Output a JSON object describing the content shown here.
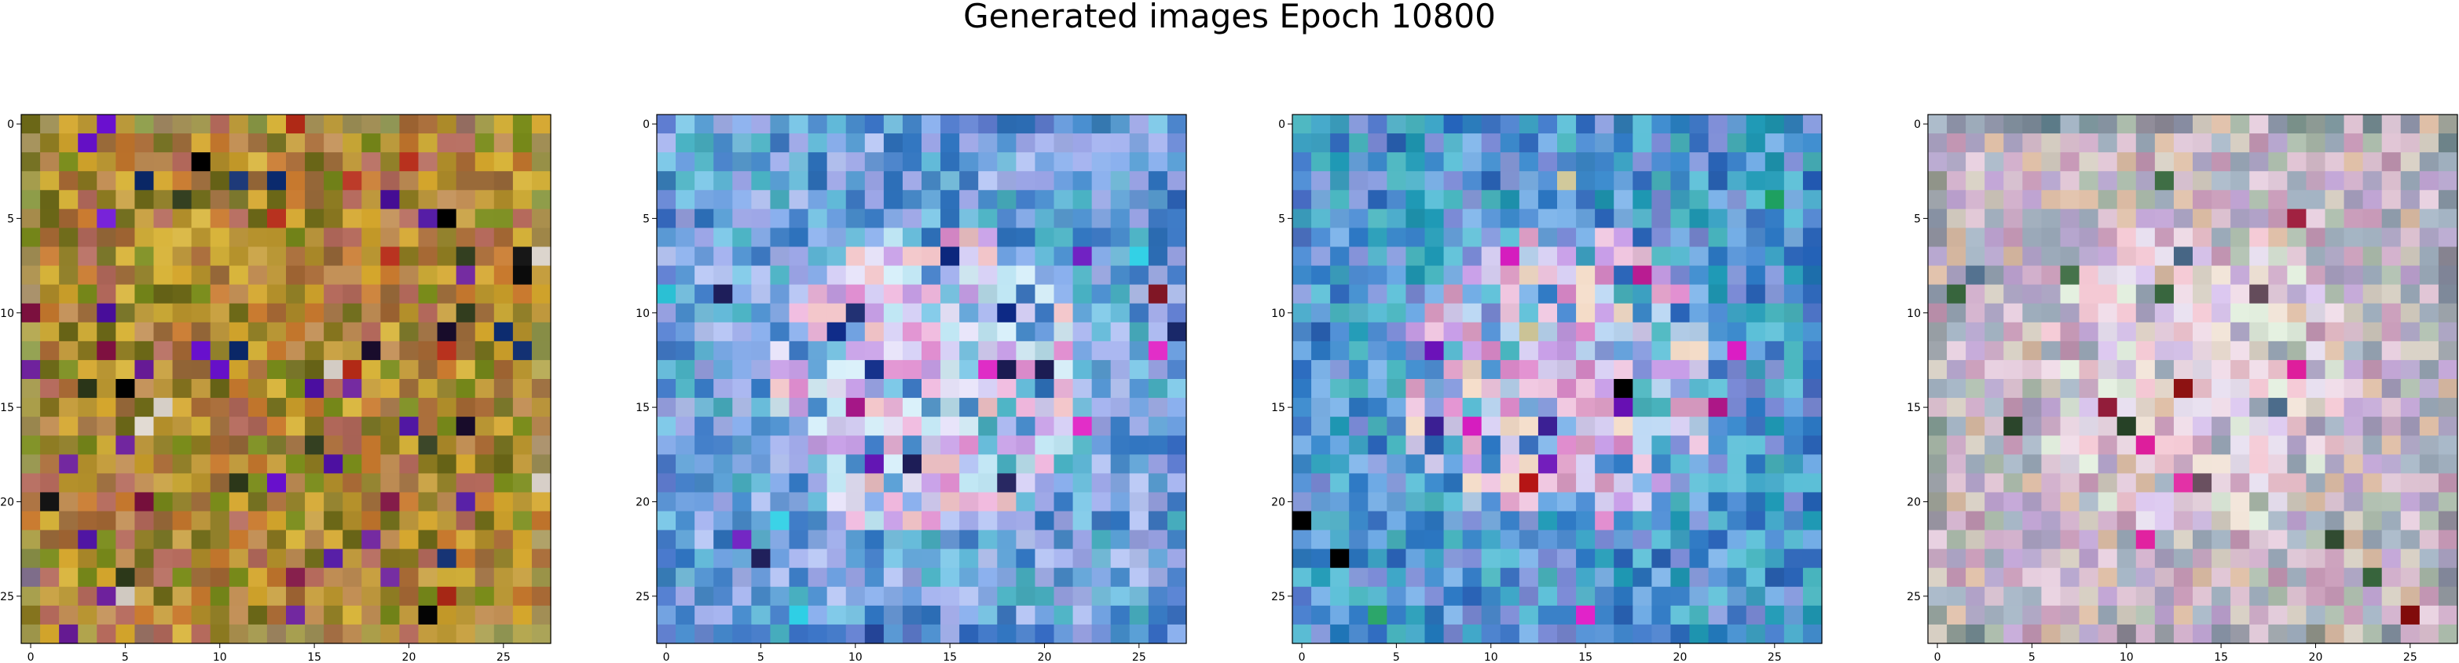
{
  "figure": {
    "title": "Generated images Epoch 10800"
  },
  "chart_data": [
    {
      "type": "heatmap",
      "title": "",
      "xlabel": "",
      "ylabel": "",
      "grid_size": [
        28,
        28
      ],
      "xlim": [
        -0.5,
        27.5
      ],
      "ylim": [
        27.5,
        -0.5
      ],
      "x_ticks": [
        "0",
        "5",
        "10",
        "15",
        "20",
        "25"
      ],
      "y_ticks": [
        "0",
        "5",
        "10",
        "15",
        "20",
        "25"
      ],
      "grid": false,
      "palette": "brown-yellow-olive",
      "base_color": "#b08a2a",
      "colors": [
        "#b5912b",
        "#c97a2e",
        "#8c7a20",
        "#d4a62c",
        "#9b6b3a",
        "#7a8c1a",
        "#c8a040",
        "#a86a35",
        "#6e6a18",
        "#c28f55",
        "#b56a5c",
        "#d8b43a"
      ],
      "accent_colors": [
        "#1a0d2e",
        "#4b0ea0",
        "#6a1b9a",
        "#0b2a6e",
        "#000000",
        "#7e1040",
        "#b62b17",
        "#2e3a1a",
        "#6d11d6",
        "#e0d8d0"
      ],
      "edge_color": "#9aa86a"
    },
    {
      "type": "heatmap",
      "title": "",
      "xlabel": "",
      "ylabel": "",
      "grid_size": [
        28,
        28
      ],
      "xlim": [
        -0.5,
        27.5
      ],
      "ylim": [
        27.5,
        -0.5
      ],
      "x_ticks": [
        "0",
        "5",
        "10",
        "15",
        "20",
        "25"
      ],
      "y_ticks": [
        "0",
        "5",
        "10",
        "15",
        "20",
        "25"
      ],
      "grid": false,
      "palette": "blue-lavender-cyan",
      "base_color": "#7fa6e0",
      "colors": [
        "#6c9fe0",
        "#8ab0ee",
        "#5fb8d8",
        "#a6b4f0",
        "#4a8fd0",
        "#7cc8e8",
        "#9aa4e6",
        "#3f7cc8",
        "#5aa0d6",
        "#b7c6f5",
        "#49b2c4",
        "#2f74c0"
      ],
      "center_colors": [
        "#e8e4fa",
        "#d6d0f6",
        "#f0b8de",
        "#e08ed0",
        "#c8a0e8",
        "#bfe6f4",
        "#d8f0fa",
        "#f2c4c8"
      ],
      "accent_colors": [
        "#7a0a1a",
        "#1a2a6e",
        "#e22ec8",
        "#b01890",
        "#1e1e5a",
        "#6a18c0",
        "#2fd0e6",
        "#0d2a88"
      ],
      "edge_color": "#2e5dbf"
    },
    {
      "type": "heatmap",
      "title": "",
      "xlabel": "",
      "ylabel": "",
      "grid_size": [
        28,
        28
      ],
      "xlim": [
        -0.5,
        27.5
      ],
      "ylim": [
        27.5,
        -0.5
      ],
      "x_ticks": [
        "0",
        "5",
        "10",
        "15",
        "20",
        "25"
      ],
      "y_ticks": [
        "0",
        "5",
        "10",
        "15",
        "20",
        "25"
      ],
      "grid": false,
      "palette": "blue-teal-magenta",
      "base_color": "#5a9ad8",
      "colors": [
        "#4f8fd6",
        "#3ea6c8",
        "#6aa8e4",
        "#2c78c4",
        "#7db4ea",
        "#49b6c0",
        "#8a9ee0",
        "#2a64b8",
        "#5cc0d8",
        "#3d8ccf",
        "#1f9ab6",
        "#7a8ad6"
      ],
      "center_colors": [
        "#d8d0f4",
        "#f0c6e0",
        "#e28ed0",
        "#c89ee8",
        "#f4dcc8",
        "#bcd8f4",
        "#e0a0c8"
      ],
      "accent_colors": [
        "#000000",
        "#c01616",
        "#e01ec8",
        "#2a0c8a",
        "#6a10b8",
        "#1ea060",
        "#d8d0a0",
        "#b81890"
      ],
      "edge_color": "#1f56b8"
    },
    {
      "type": "heatmap",
      "title": "",
      "xlabel": "",
      "ylabel": "",
      "grid_size": [
        28,
        28
      ],
      "xlim": [
        -0.5,
        27.5
      ],
      "ylim": [
        27.5,
        -0.5
      ],
      "x_ticks": [
        "0",
        "5",
        "10",
        "15",
        "20",
        "25"
      ],
      "y_ticks": [
        "0",
        "5",
        "10",
        "15",
        "20",
        "25"
      ],
      "grid": false,
      "palette": "pastel-pink-mauve",
      "base_color": "#c8b0c8",
      "colors": [
        "#d2b0cc",
        "#b8a8d0",
        "#e0c4d4",
        "#a8b8c8",
        "#c89ab8",
        "#d8d0c4",
        "#9aa8b8",
        "#e8d0e0",
        "#b0c0b0",
        "#c4a8d8",
        "#e0c0a8",
        "#a8a0c0"
      ],
      "center_colors": [
        "#f0dce8",
        "#e8e0f0",
        "#f4c8d4",
        "#dcc8f0",
        "#f2e4d8",
        "#e4f0e0"
      ],
      "accent_colors": [
        "#8a0c0c",
        "#1e3a1e",
        "#e01e9e",
        "#a02040",
        "#3a6a40",
        "#4a6a8a",
        "#6a5060"
      ],
      "edge_color": "#5a7a7a"
    }
  ]
}
